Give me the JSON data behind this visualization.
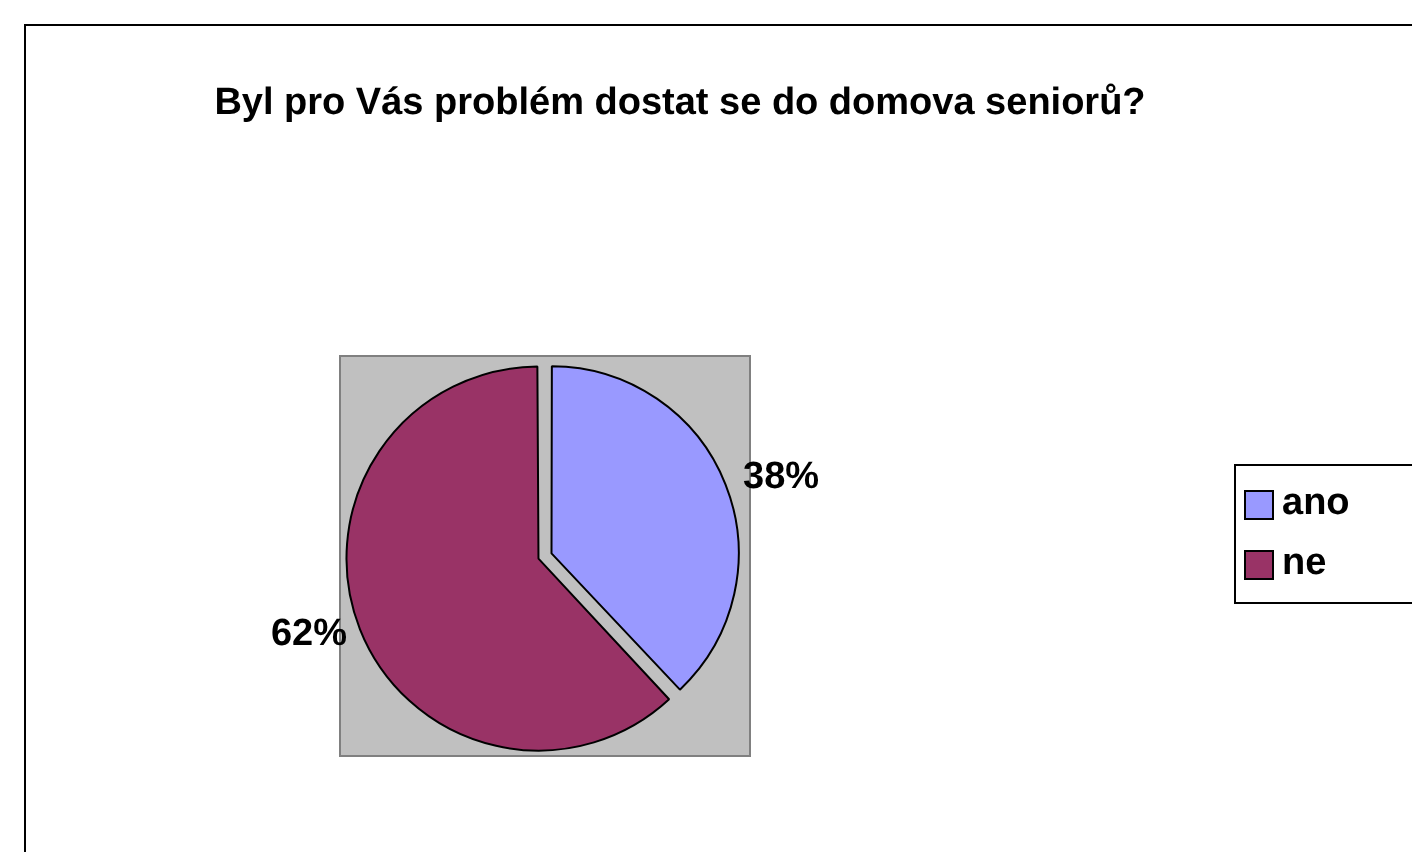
{
  "chart_data": {
    "type": "pie",
    "title": "Byl pro Vás problém dostat se do domova seniorů?",
    "categories": [
      "ano",
      "ne"
    ],
    "values": [
      38,
      62
    ],
    "value_labels": [
      "38%",
      "62%"
    ],
    "colors": [
      "#9999ff",
      "#993366"
    ],
    "legend": "right"
  }
}
